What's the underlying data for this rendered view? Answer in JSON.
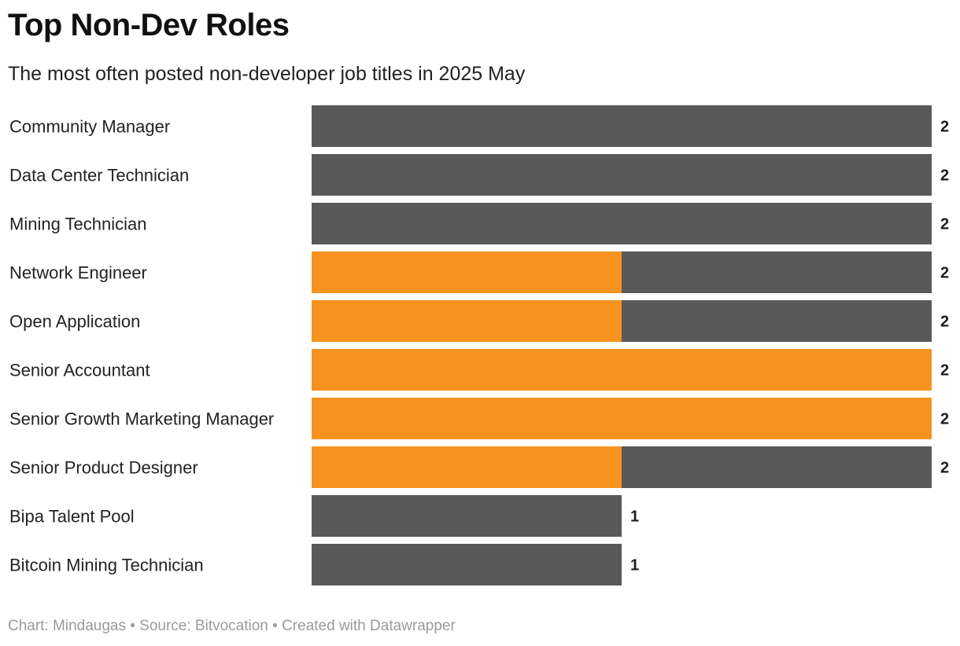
{
  "header": {
    "title": "Top Non-Dev Roles",
    "subtitle": "The most often posted non-developer job titles in 2025 May"
  },
  "footer": {
    "credit": "Chart: Mindaugas • Source: Bitvocation • Created with Datawrapper"
  },
  "colors": {
    "dark": "#595959",
    "accent": "#f5931e"
  },
  "chart_data": {
    "type": "bar",
    "orientation": "horizontal",
    "stacked": true,
    "title": "Top Non-Dev Roles",
    "subtitle": "The most often posted non-developer job titles in 2025 May",
    "categories": [
      "Community Manager",
      "Data Center Technician",
      "Mining Technician",
      "Network Engineer",
      "Open Application",
      "Senior Accountant",
      "Senior Growth Marketing Manager",
      "Senior Product Designer",
      "Bipa Talent Pool",
      "Bitcoin Mining Technician"
    ],
    "series": [
      {
        "name": "orange",
        "color": "#f5931e",
        "values": [
          0,
          0,
          0,
          1,
          1,
          2,
          2,
          1,
          0,
          0
        ]
      },
      {
        "name": "gray",
        "color": "#595959",
        "values": [
          2,
          2,
          2,
          1,
          1,
          0,
          0,
          1,
          1,
          1
        ]
      }
    ],
    "totals": [
      2,
      2,
      2,
      2,
      2,
      2,
      2,
      2,
      1,
      1
    ],
    "xlim": [
      0,
      2
    ],
    "xlabel": "",
    "ylabel": "",
    "grid": false,
    "legend": "none"
  }
}
